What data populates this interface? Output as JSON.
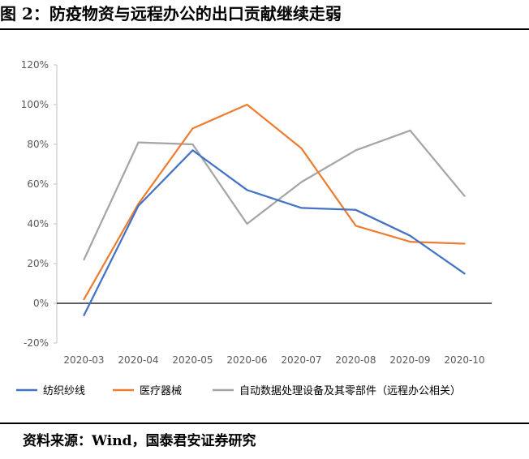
{
  "figure": {
    "title": "图 2：防疫物资与远程办公的出口贡献继续走弱",
    "source": "资料来源：Wind，国泰君安证券研究"
  },
  "chart_data": {
    "type": "line",
    "categories": [
      "2020-03",
      "2020-04",
      "2020-05",
      "2020-06",
      "2020-07",
      "2020-08",
      "2020-09",
      "2020-10"
    ],
    "y_ticks": [
      "-20%",
      "0%",
      "20%",
      "40%",
      "60%",
      "80%",
      "100%",
      "120%"
    ],
    "ylim": [
      -20,
      120
    ],
    "y_unit": "%",
    "grid": false,
    "legend_position": "bottom",
    "series": [
      {
        "name": "纺织纱线",
        "color": "#4472C4",
        "values": [
          -6,
          49,
          77,
          57,
          48,
          47,
          34,
          15
        ]
      },
      {
        "name": "医疗器械",
        "color": "#ED7D31",
        "values": [
          2,
          50,
          88,
          100,
          78,
          39,
          31,
          30
        ]
      },
      {
        "name": "自动数据处理设备及其零部件（远程办公相关）",
        "color": "#A5A5A5",
        "values": [
          22,
          81,
          80,
          40,
          61,
          77,
          87,
          54
        ]
      }
    ]
  }
}
